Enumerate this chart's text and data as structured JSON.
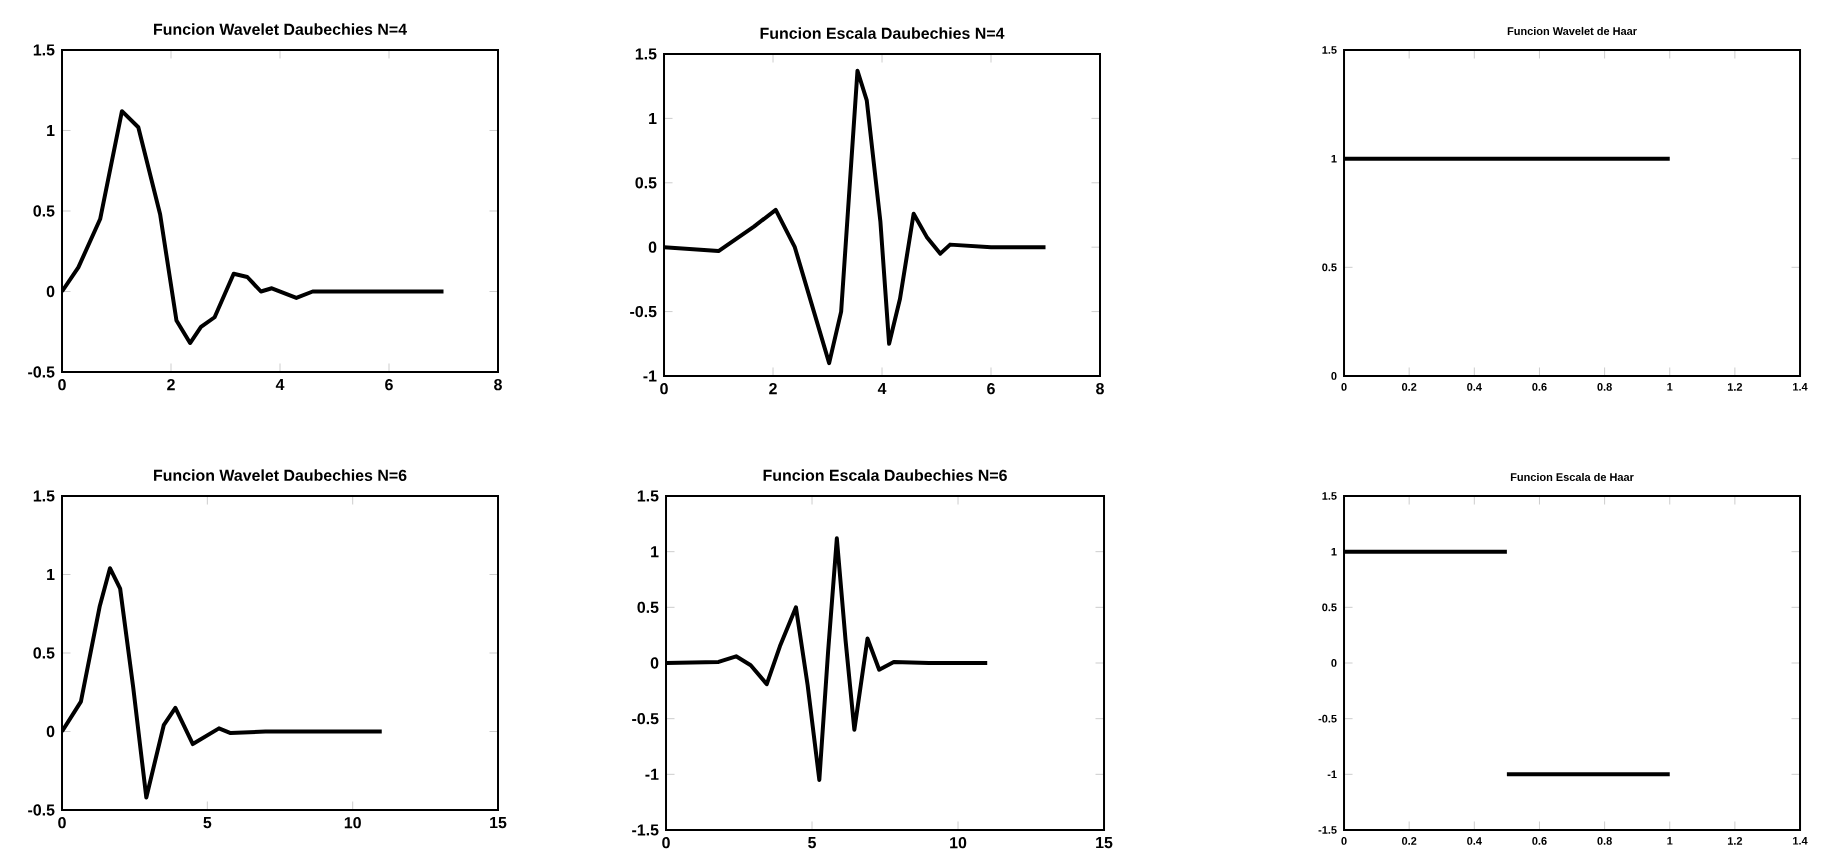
{
  "chart_data": [
    {
      "type": "line",
      "title": "Funcion Wavelet Daubechies N=4",
      "x": [
        0,
        0.3,
        0.7,
        1.1,
        1.4,
        1.8,
        2.1,
        2.35,
        2.55,
        2.8,
        3.15,
        3.4,
        3.65,
        3.85,
        4.3,
        4.6,
        5,
        6,
        7
      ],
      "series": [
        {
          "color": "#000000",
          "values": [
            0,
            0.15,
            0.45,
            1.12,
            1.02,
            0.48,
            -0.18,
            -0.32,
            -0.22,
            -0.16,
            0.11,
            0.09,
            0,
            0.02,
            -0.04,
            0,
            0,
            0,
            0
          ]
        }
      ],
      "xlim": [
        0,
        8
      ],
      "ylim": [
        -0.5,
        1.5
      ],
      "xticks": [
        0,
        2,
        4,
        6,
        8
      ],
      "yticks": [
        -0.5,
        0,
        0.5,
        1,
        1.5
      ],
      "marker": "none",
      "line_style": "solid"
    },
    {
      "type": "line",
      "title": "Funcion Escala Daubechies N=4",
      "x": [
        0,
        1,
        1.65,
        2.05,
        2.4,
        2.75,
        3.03,
        3.25,
        3.55,
        3.72,
        3.97,
        4.13,
        4.33,
        4.58,
        4.82,
        5.07,
        5.25,
        6,
        7
      ],
      "series": [
        {
          "color": "#000000",
          "values": [
            0,
            -0.03,
            0.16,
            0.29,
            0,
            -0.5,
            -0.9,
            -0.5,
            1.37,
            1.14,
            0.2,
            -0.75,
            -0.4,
            0.26,
            0.08,
            -0.05,
            0.02,
            0,
            0
          ]
        }
      ],
      "xlim": [
        0,
        8
      ],
      "ylim": [
        -1,
        1.5
      ],
      "xticks": [
        0,
        2,
        4,
        6,
        8
      ],
      "yticks": [
        -1,
        -0.5,
        0,
        0.5,
        1,
        1.5
      ],
      "marker": "none",
      "line_style": "solid"
    },
    {
      "type": "line",
      "title": "Funcion Wavelet de Haar",
      "x": [
        0,
        1
      ],
      "series": [
        {
          "color": "#000000",
          "values": [
            1,
            1
          ]
        }
      ],
      "xlim": [
        0,
        1.4
      ],
      "ylim": [
        0,
        1.5
      ],
      "xticks": [
        0,
        0.2,
        0.4,
        0.6,
        0.8,
        1,
        1.2,
        1.4
      ],
      "yticks": [
        0,
        0.5,
        1,
        1.5
      ],
      "marker": "none",
      "line_style": "solid"
    },
    {
      "type": "line",
      "title": "Funcion Wavelet Daubechies N=6",
      "x": [
        0,
        0.65,
        1.3,
        1.65,
        2,
        2.45,
        2.9,
        3.5,
        3.9,
        4.5,
        5.4,
        5.8,
        7,
        9,
        11
      ],
      "series": [
        {
          "color": "#000000",
          "values": [
            0,
            0.19,
            0.8,
            1.04,
            0.91,
            0.28,
            -0.42,
            0.04,
            0.15,
            -0.08,
            0.02,
            -0.01,
            0,
            0,
            0
          ]
        }
      ],
      "xlim": [
        0,
        15
      ],
      "ylim": [
        -0.5,
        1.5
      ],
      "xticks": [
        0,
        5,
        10,
        15
      ],
      "yticks": [
        -0.5,
        0,
        0.5,
        1,
        1.5
      ],
      "marker": "none",
      "line_style": "solid"
    },
    {
      "type": "line",
      "title": "Funcion Escala Daubechies N=6",
      "x": [
        0,
        1.8,
        2.4,
        2.9,
        3.45,
        3.9,
        4.45,
        4.85,
        5.25,
        5.55,
        5.85,
        6.15,
        6.45,
        6.9,
        7.3,
        7.8,
        9,
        11
      ],
      "series": [
        {
          "color": "#000000",
          "values": [
            0,
            0.01,
            0.06,
            -0.02,
            -0.19,
            0.15,
            0.5,
            -0.2,
            -1.05,
            0.1,
            1.12,
            0.2,
            -0.6,
            0.22,
            -0.06,
            0.01,
            0,
            0
          ]
        }
      ],
      "xlim": [
        0,
        15
      ],
      "ylim": [
        -1.5,
        1.5
      ],
      "xticks": [
        0,
        5,
        10,
        15
      ],
      "yticks": [
        -1.5,
        -1,
        -0.5,
        0,
        0.5,
        1,
        1.5
      ],
      "marker": "none",
      "line_style": "solid"
    },
    {
      "type": "line",
      "title": "Funcion Escala de Haar",
      "series": [
        {
          "color": "#000000",
          "x": [
            0,
            0.5
          ],
          "values": [
            1,
            1
          ]
        },
        {
          "color": "#000000",
          "x": [
            0.5,
            1
          ],
          "values": [
            -1,
            -1
          ]
        }
      ],
      "xlim": [
        0,
        1.4
      ],
      "ylim": [
        -1.5,
        1.5
      ],
      "xticks": [
        0,
        0.2,
        0.4,
        0.6,
        0.8,
        1,
        1.2,
        1.4
      ],
      "yticks": [
        -1.5,
        -1,
        -0.5,
        0,
        0.5,
        1,
        1.5
      ],
      "marker": "none",
      "line_style": "solid"
    }
  ]
}
